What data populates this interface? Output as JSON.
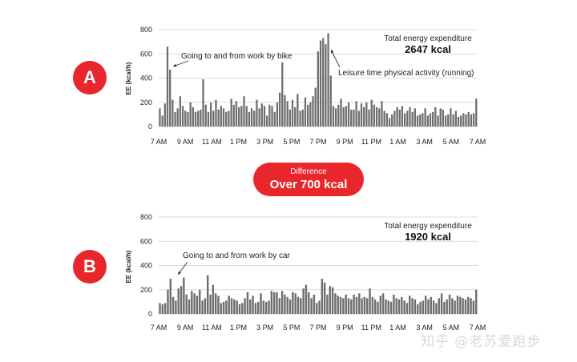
{
  "chart_data": [
    {
      "type": "bar",
      "panel": "A",
      "ylabel": "EE (kcal/h)",
      "ylim": [
        0,
        800
      ],
      "yticks": [
        "0",
        "200",
        "400",
        "600",
        "800"
      ],
      "xticks": [
        "7 AM",
        "9 AM",
        "11 AM",
        "1 PM",
        "3 PM",
        "5 PM",
        "7 PM",
        "9 PM",
        "11 PM",
        "1 AM",
        "3 AM",
        "5 AM",
        "7 AM"
      ],
      "grid": true,
      "total_label": "Total energy expenditure",
      "total_value": "2647 kcal",
      "annotations": [
        "Going to and from work by bike",
        "Leisure time physical activity (running)"
      ],
      "values": [
        150,
        90,
        190,
        660,
        470,
        220,
        120,
        150,
        250,
        170,
        130,
        120,
        200,
        160,
        120,
        130,
        140,
        390,
        180,
        120,
        200,
        130,
        220,
        140,
        170,
        150,
        120,
        130,
        230,
        180,
        210,
        160,
        170,
        250,
        170,
        120,
        150,
        130,
        220,
        150,
        190,
        170,
        90,
        180,
        170,
        120,
        200,
        280,
        530,
        260,
        210,
        140,
        220,
        160,
        270,
        130,
        140,
        240,
        180,
        200,
        250,
        320,
        620,
        710,
        730,
        680,
        770,
        420,
        170,
        150,
        180,
        230,
        160,
        170,
        200,
        140,
        140,
        210,
        130,
        190,
        160,
        200,
        140,
        220,
        180,
        160,
        150,
        210,
        130,
        110,
        70,
        100,
        130,
        160,
        140,
        170,
        110,
        130,
        160,
        120,
        150,
        90,
        100,
        110,
        150,
        90,
        110,
        120,
        160,
        90,
        150,
        140,
        90,
        100,
        150,
        100,
        130,
        80,
        90,
        110,
        100,
        120,
        100,
        110,
        230
      ]
    },
    {
      "type": "bar",
      "panel": "B",
      "ylabel": "EE (kcal/h)",
      "ylim": [
        0,
        800
      ],
      "yticks": [
        "0",
        "200",
        "400",
        "600",
        "800"
      ],
      "xticks": [
        "7 AM",
        "9 AM",
        "11 AM",
        "1 PM",
        "3 PM",
        "5 PM",
        "7 PM",
        "9 PM",
        "11 PM",
        "1 AM",
        "3 AM",
        "5 AM",
        "7 AM"
      ],
      "grid": true,
      "total_label": "Total energy expenditure",
      "total_value": "1920 kcal",
      "annotations": [
        "Going to and from work by car"
      ],
      "values": [
        90,
        80,
        90,
        200,
        290,
        140,
        110,
        210,
        230,
        300,
        160,
        120,
        190,
        170,
        150,
        200,
        110,
        130,
        320,
        160,
        240,
        170,
        150,
        90,
        100,
        110,
        150,
        130,
        120,
        110,
        80,
        90,
        130,
        180,
        120,
        150,
        90,
        100,
        170,
        110,
        100,
        110,
        190,
        180,
        180,
        130,
        190,
        160,
        140,
        120,
        180,
        170,
        140,
        130,
        210,
        240,
        180,
        130,
        160,
        90,
        110,
        290,
        260,
        160,
        230,
        220,
        170,
        150,
        140,
        130,
        160,
        130,
        120,
        160,
        140,
        170,
        130,
        140,
        130,
        210,
        140,
        120,
        100,
        150,
        170,
        120,
        110,
        100,
        160,
        130,
        120,
        140,
        110,
        90,
        150,
        130,
        120,
        80,
        100,
        110,
        150,
        120,
        140,
        110,
        90,
        130,
        170,
        100,
        120,
        160,
        130,
        110,
        150,
        140,
        130,
        120,
        140,
        130,
        110,
        200
      ]
    }
  ],
  "difference": {
    "label": "Difference",
    "value": "Over 700 kcal"
  },
  "badges": {
    "a": "A",
    "b": "B"
  },
  "watermark": "知乎 @老苏爱跑步",
  "colors": {
    "bar": "#6e6e6e",
    "accent": "#e8262b",
    "grid": "#d0d0d0"
  }
}
